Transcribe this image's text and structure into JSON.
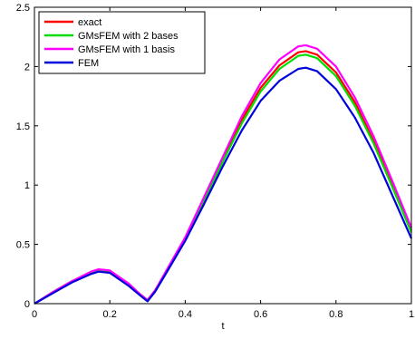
{
  "chart_data": {
    "type": "line",
    "title": "",
    "xlabel": "t",
    "ylabel": "",
    "xlim": [
      0,
      1
    ],
    "ylim": [
      0,
      2.5
    ],
    "xticks": [
      0,
      0.2,
      0.4,
      0.6,
      0.8,
      1
    ],
    "yticks": [
      0,
      0.5,
      1,
      1.5,
      2,
      2.5
    ],
    "xtick_labels": [
      "0",
      "0.2",
      "0.4",
      "0.6",
      "0.8",
      "1"
    ],
    "ytick_labels": [
      "0",
      "0.5",
      "1",
      "1.5",
      "2",
      "2.5"
    ],
    "grid": false,
    "legend_position": "top-left",
    "x": [
      0,
      0.05,
      0.1,
      0.15,
      0.17,
      0.2,
      0.25,
      0.28,
      0.3,
      0.32,
      0.35,
      0.4,
      0.45,
      0.5,
      0.55,
      0.6,
      0.65,
      0.7,
      0.72,
      0.75,
      0.8,
      0.85,
      0.9,
      0.95,
      1.0
    ],
    "series": [
      {
        "name": "exact",
        "color": "#ff0000",
        "values": [
          0,
          0.1,
          0.19,
          0.26,
          0.28,
          0.27,
          0.16,
          0.08,
          0.03,
          0.11,
          0.27,
          0.55,
          0.88,
          1.22,
          1.55,
          1.82,
          2.01,
          2.12,
          2.13,
          2.1,
          1.95,
          1.7,
          1.37,
          1.0,
          0.62
        ]
      },
      {
        "name": "GMsFEM with 2 bases",
        "color": "#00dd00",
        "values": [
          0,
          0.1,
          0.19,
          0.26,
          0.28,
          0.27,
          0.16,
          0.08,
          0.03,
          0.11,
          0.27,
          0.55,
          0.87,
          1.2,
          1.52,
          1.79,
          1.98,
          2.09,
          2.1,
          2.07,
          1.92,
          1.67,
          1.35,
          0.98,
          0.6
        ]
      },
      {
        "name": "GMsFEM with 1 basis",
        "color": "#ff00ff",
        "values": [
          0,
          0.1,
          0.19,
          0.27,
          0.29,
          0.28,
          0.17,
          0.08,
          0.03,
          0.11,
          0.28,
          0.56,
          0.9,
          1.24,
          1.58,
          1.86,
          2.06,
          2.17,
          2.18,
          2.15,
          2.0,
          1.74,
          1.41,
          1.03,
          0.64
        ]
      },
      {
        "name": "FEM",
        "color": "#0000dd",
        "values": [
          0,
          0.09,
          0.18,
          0.25,
          0.27,
          0.26,
          0.15,
          0.07,
          0.02,
          0.1,
          0.26,
          0.53,
          0.84,
          1.16,
          1.46,
          1.71,
          1.88,
          1.98,
          1.99,
          1.96,
          1.81,
          1.57,
          1.27,
          0.91,
          0.55
        ]
      }
    ]
  }
}
